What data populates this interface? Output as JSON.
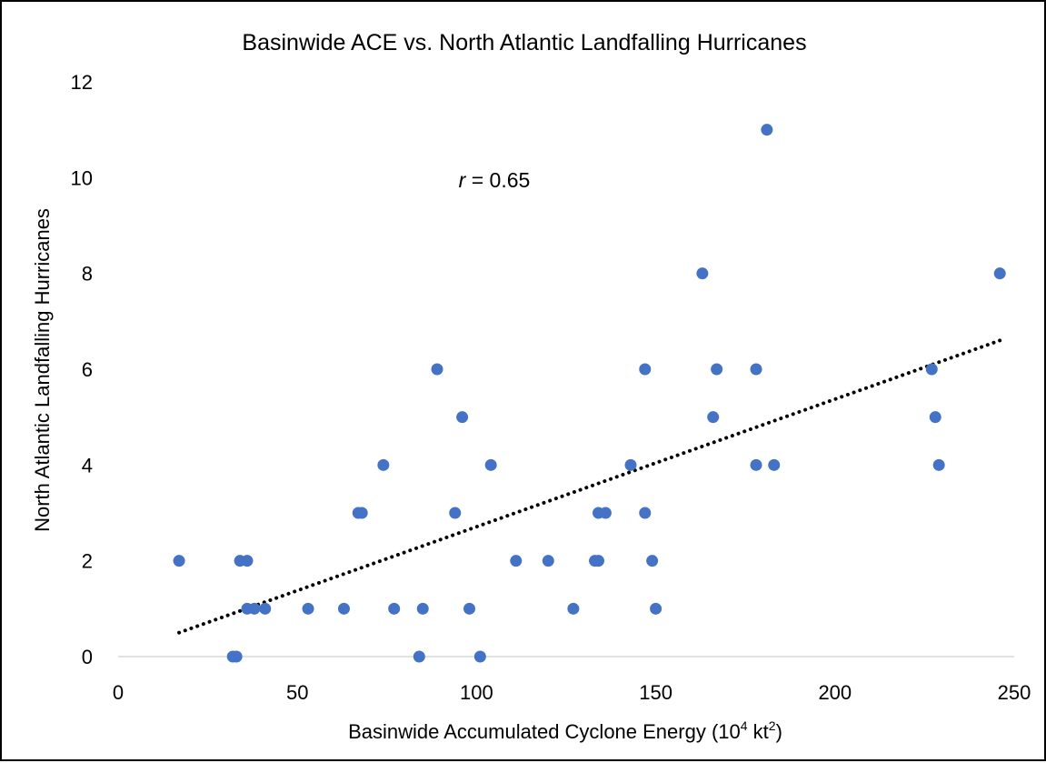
{
  "chart_data": {
    "type": "scatter",
    "title": "Basinwide ACE vs. North Atlantic Landfalling Hurricanes",
    "xlabel": {
      "text": "Basinwide Accumulated Cyclone Energy (10",
      "sup1": "4",
      "mid": " kt",
      "sup2": "2",
      "end": ")"
    },
    "ylabel": "North Atlantic Landfalling Hurricanes",
    "xlim": [
      0,
      250
    ],
    "ylim": [
      0,
      12
    ],
    "xticks": [
      0,
      50,
      100,
      150,
      200,
      250
    ],
    "yticks": [
      0,
      2,
      4,
      6,
      8,
      10,
      12
    ],
    "grid": false,
    "legend": "none",
    "marker_color": "#4472C4",
    "trendline": {
      "type": "linear",
      "style": "dotted",
      "color": "#000000",
      "x": [
        17,
        246
      ],
      "y": [
        0.5,
        6.6
      ]
    },
    "annotation": {
      "var": "r",
      "rest": " = 0.65",
      "x": 95,
      "y": 9.8
    },
    "points": [
      {
        "x": 17,
        "y": 2
      },
      {
        "x": 32,
        "y": 0
      },
      {
        "x": 33,
        "y": 0
      },
      {
        "x": 34,
        "y": 2
      },
      {
        "x": 36,
        "y": 2
      },
      {
        "x": 36,
        "y": 1
      },
      {
        "x": 38,
        "y": 1
      },
      {
        "x": 41,
        "y": 1
      },
      {
        "x": 53,
        "y": 1
      },
      {
        "x": 63,
        "y": 1
      },
      {
        "x": 67,
        "y": 3
      },
      {
        "x": 68,
        "y": 3
      },
      {
        "x": 74,
        "y": 4
      },
      {
        "x": 77,
        "y": 1
      },
      {
        "x": 84,
        "y": 0
      },
      {
        "x": 85,
        "y": 1
      },
      {
        "x": 89,
        "y": 6
      },
      {
        "x": 94,
        "y": 3
      },
      {
        "x": 96,
        "y": 5
      },
      {
        "x": 98,
        "y": 1
      },
      {
        "x": 101,
        "y": 0
      },
      {
        "x": 104,
        "y": 4
      },
      {
        "x": 111,
        "y": 2
      },
      {
        "x": 120,
        "y": 2
      },
      {
        "x": 127,
        "y": 1
      },
      {
        "x": 133,
        "y": 2
      },
      {
        "x": 134,
        "y": 2
      },
      {
        "x": 134,
        "y": 3
      },
      {
        "x": 136,
        "y": 3
      },
      {
        "x": 143,
        "y": 4
      },
      {
        "x": 147,
        "y": 3
      },
      {
        "x": 147,
        "y": 6
      },
      {
        "x": 149,
        "y": 2
      },
      {
        "x": 150,
        "y": 1
      },
      {
        "x": 163,
        "y": 8
      },
      {
        "x": 166,
        "y": 5
      },
      {
        "x": 167,
        "y": 6
      },
      {
        "x": 178,
        "y": 6
      },
      {
        "x": 178,
        "y": 4
      },
      {
        "x": 181,
        "y": 11
      },
      {
        "x": 183,
        "y": 4
      },
      {
        "x": 227,
        "y": 6
      },
      {
        "x": 228,
        "y": 5
      },
      {
        "x": 229,
        "y": 4
      },
      {
        "x": 246,
        "y": 8
      }
    ]
  }
}
